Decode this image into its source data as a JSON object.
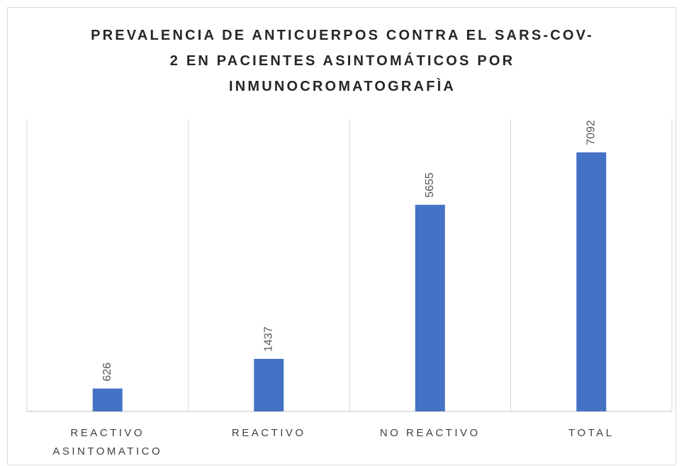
{
  "chart_data": {
    "type": "bar",
    "title": "PREVALENCIA DE ANTICUERPOS CONTRA EL SARS-COV-2 EN PACIENTES ASINTOMÁTICOS POR INMUNOCROMATOGRAFÌA",
    "categories": [
      "REACTIVO ASINTOMATICO",
      "REACTIVO",
      "NO REACTIVO",
      "TOTAL"
    ],
    "values": [
      626,
      1437,
      5655,
      7092
    ],
    "color": "#4472c4",
    "ylim": [
      0,
      8000
    ],
    "grid": true
  }
}
